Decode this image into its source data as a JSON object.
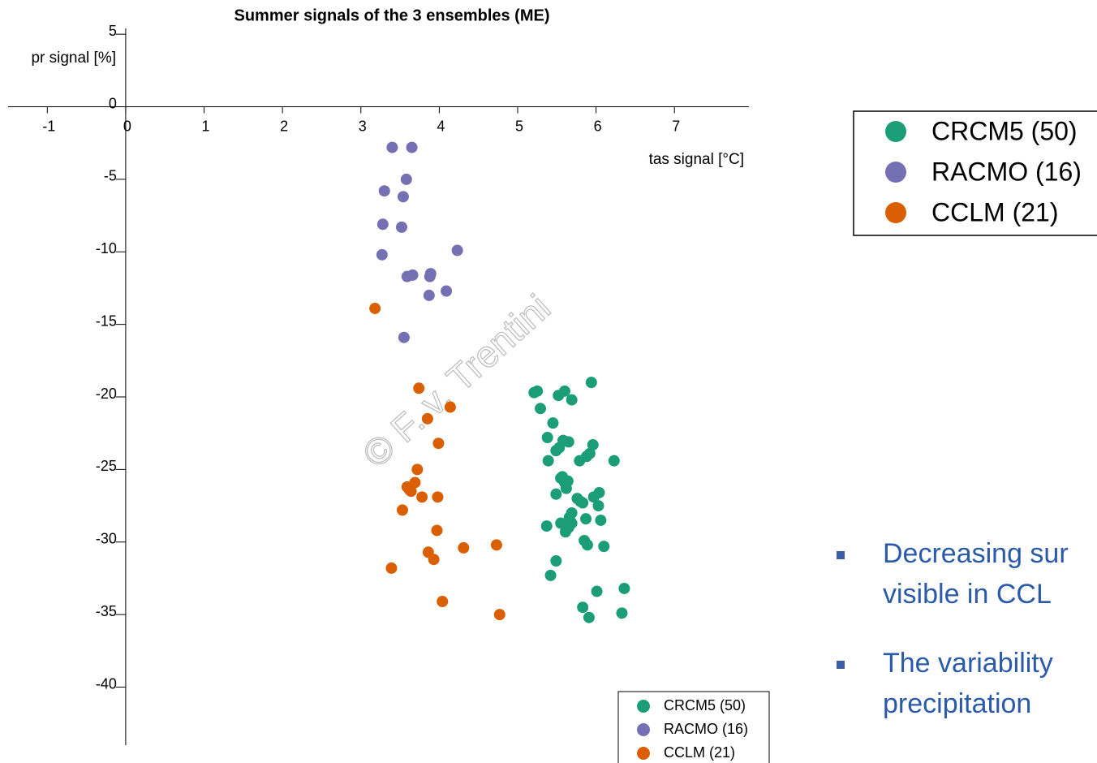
{
  "chart_data": {
    "type": "scatter",
    "title": "Summer signals of the 3 ensembles (ME)",
    "xlabel": "tas signal [°C]",
    "ylabel": "pr signal [%]",
    "watermark": "© F. v. Trentini",
    "xlim": [
      -1.5,
      7.95
    ],
    "ylim": [
      -44,
      5.4
    ],
    "xticks": [
      -1,
      0,
      1,
      2,
      3,
      4,
      5,
      6,
      7
    ],
    "yticks": [
      5,
      0,
      -5,
      -10,
      -15,
      -20,
      -25,
      -30,
      -35,
      -40
    ],
    "series": [
      {
        "name": "CRCM5 (50)",
        "color": "#1b9e77",
        "x": [
          5.94,
          5.21,
          5.25,
          5.52,
          5.6,
          5.69,
          5.29,
          5.45,
          5.38,
          5.58,
          5.65,
          5.53,
          5.49,
          5.96,
          5.92,
          5.39,
          5.79,
          5.88,
          6.23,
          5.57,
          5.6,
          5.64,
          5.62,
          5.49,
          6.04,
          5.97,
          5.76,
          5.83,
          6.03,
          5.69,
          5.87,
          6.06,
          5.69,
          5.55,
          5.65,
          5.37,
          5.61,
          5.85,
          5.89,
          6.1,
          5.49,
          5.42,
          6.36,
          6.01,
          5.83,
          6.33,
          5.91,
          5.66,
          5.8,
          5.55
        ],
        "values": [
          -19.0,
          -19.7,
          -19.6,
          -19.9,
          -19.6,
          -20.2,
          -20.8,
          -21.8,
          -22.8,
          -23.0,
          -23.1,
          -23.5,
          -23.7,
          -23.3,
          -23.9,
          -24.4,
          -24.4,
          -24.1,
          -24.4,
          -25.5,
          -25.9,
          -25.8,
          -26.3,
          -26.7,
          -26.6,
          -26.9,
          -27.0,
          -27.3,
          -27.5,
          -28.0,
          -28.4,
          -28.5,
          -28.7,
          -28.7,
          -29.0,
          -28.9,
          -29.3,
          -29.9,
          -30.2,
          -30.3,
          -31.3,
          -32.3,
          -33.2,
          -33.4,
          -34.5,
          -34.9,
          -35.2,
          -28.3,
          -27.2,
          -25.6
        ]
      },
      {
        "name": "RACMO (16)",
        "color": "#7570b3",
        "x": [
          3.4,
          3.65,
          3.58,
          3.3,
          3.54,
          3.28,
          3.52,
          4.23,
          3.27,
          3.89,
          3.66,
          3.59,
          3.88,
          4.09,
          3.87,
          3.55
        ],
        "values": [
          -2.8,
          -2.8,
          -5.0,
          -5.8,
          -6.2,
          -8.1,
          -8.3,
          -9.9,
          -10.2,
          -11.5,
          -11.6,
          -11.7,
          -11.7,
          -12.7,
          -13.0,
          -15.9
        ]
      },
      {
        "name": "CCLM (21)",
        "color": "#d95f02",
        "x": [
          3.18,
          3.74,
          4.14,
          3.85,
          3.99,
          3.72,
          3.69,
          3.59,
          3.64,
          3.78,
          3.98,
          3.53,
          3.97,
          4.73,
          4.31,
          3.86,
          3.93,
          3.39,
          4.04,
          4.77,
          3.62
        ],
        "values": [
          -13.9,
          -19.4,
          -20.7,
          -21.5,
          -23.2,
          -25.0,
          -25.9,
          -26.2,
          -26.5,
          -26.9,
          -26.9,
          -27.8,
          -29.2,
          -30.2,
          -30.4,
          -30.7,
          -31.2,
          -31.8,
          -34.1,
          -35.0,
          -26.4
        ]
      }
    ]
  },
  "slide": {
    "bullets": [
      [
        "Decreasing sur",
        "visible in CCL"
      ],
      [
        "The variability",
        "precipitation"
      ]
    ]
  }
}
